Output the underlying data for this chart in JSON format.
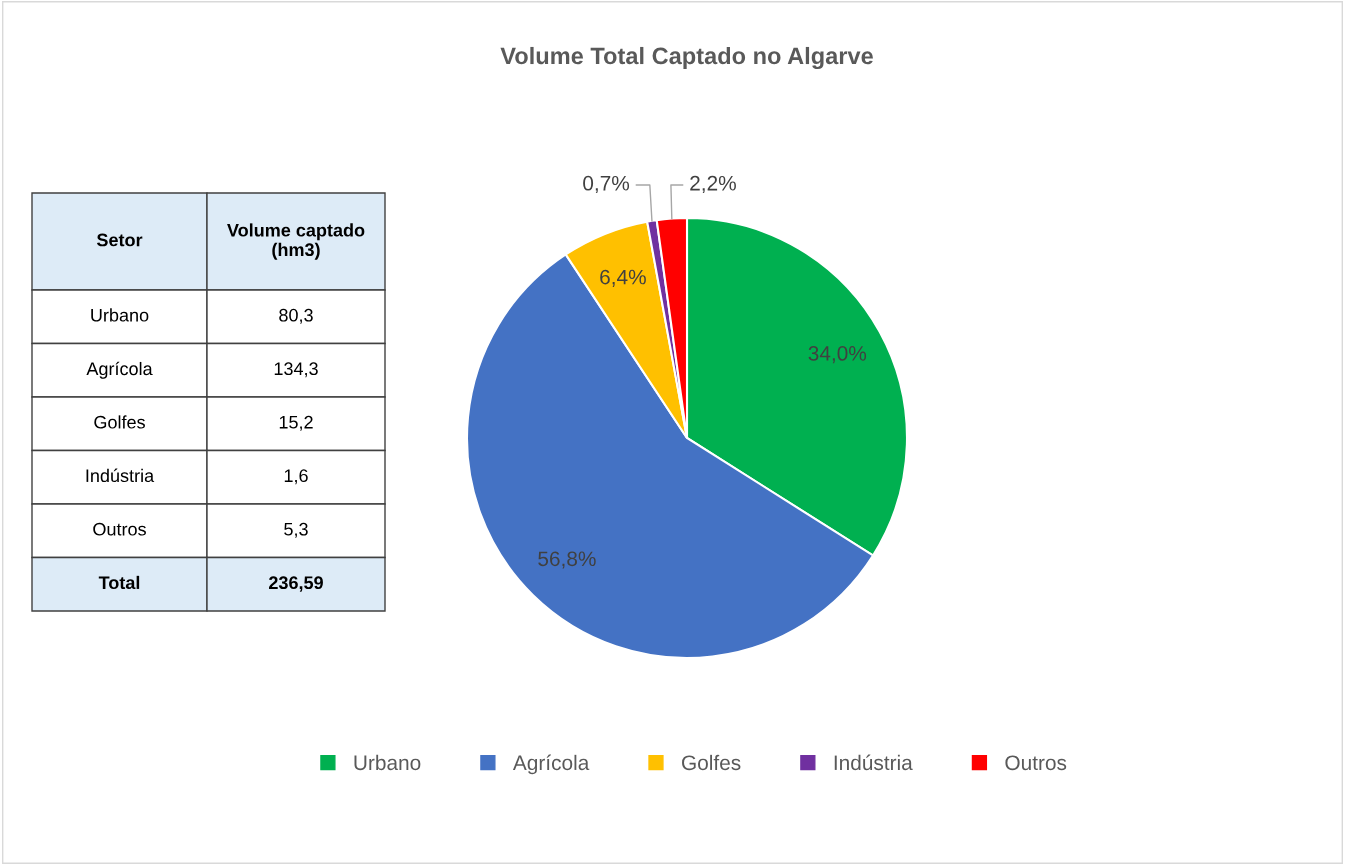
{
  "chart_data": [
    {
      "type": "pie",
      "title": "Volume Total Captado no Algarve",
      "categories": [
        "Urbano",
        "Agrícola",
        "Golfes",
        "Indústria",
        "Outros"
      ],
      "values": [
        34.0,
        56.8,
        6.4,
        0.7,
        2.2
      ],
      "colors": [
        "#00b050",
        "#4472c4",
        "#ffc000",
        "#7030a0",
        "#ff0000"
      ],
      "value_labels": [
        "34,0%",
        "56,8%",
        "6,4%",
        "0,7%",
        "2,2%"
      ],
      "legend": "bottom"
    },
    {
      "type": "other",
      "categories": [
        "Setor",
        "Volume captado (hm3)"
      ],
      "y_categories": [
        "Urbano",
        "Agrícola",
        "Golfes",
        "Indústria",
        "Outros",
        "Total"
      ],
      "cell_labels": [
        [
          "80,3"
        ],
        [
          "134,3"
        ],
        [
          "15,2"
        ],
        [
          "1,6"
        ],
        [
          "5,3"
        ],
        [
          "236,59"
        ]
      ]
    }
  ]
}
